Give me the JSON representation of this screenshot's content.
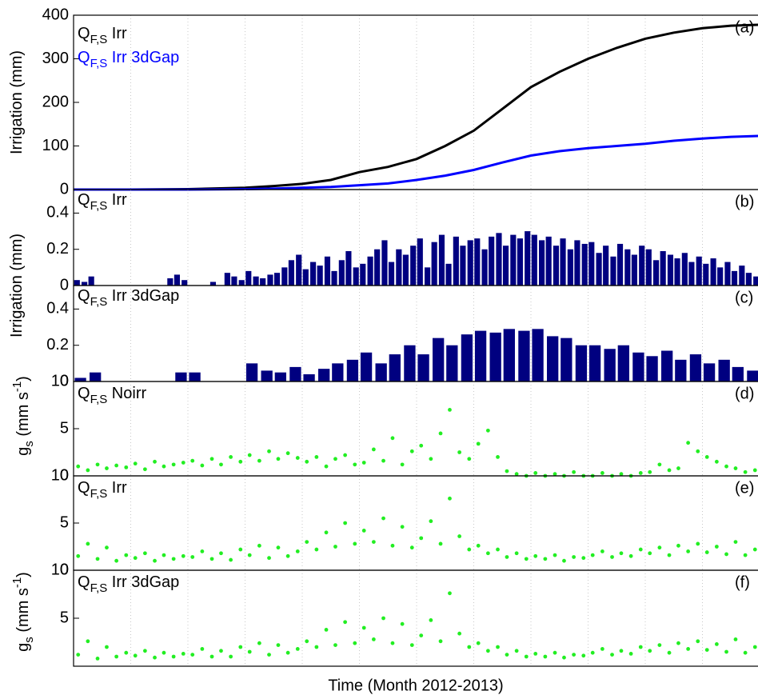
{
  "chart_data": [
    {
      "type": "line",
      "label": "(a)",
      "ylabel": [
        "Irrigation (mm)"
      ],
      "xlim": [
        0,
        12
      ],
      "xticks": [
        1,
        2,
        3,
        4,
        5,
        6,
        7,
        8,
        9,
        10,
        11
      ],
      "ylim": [
        0,
        400
      ],
      "yticks": [
        0,
        100,
        200,
        300,
        400
      ],
      "grid": true,
      "x": [
        0,
        1,
        2,
        3,
        3.5,
        4,
        4.5,
        5,
        5.5,
        6,
        6.5,
        7,
        7.5,
        8,
        8.5,
        9,
        9.5,
        10,
        10.5,
        11,
        11.5,
        12
      ],
      "series": [
        {
          "name": [
            "Q",
            "F,S",
            " Irr"
          ],
          "color": "#000000",
          "values": [
            0,
            0,
            1,
            4,
            8,
            13,
            22,
            40,
            52,
            70,
            100,
            135,
            185,
            235,
            270,
            300,
            325,
            346,
            360,
            370,
            376,
            378
          ]
        },
        {
          "name": [
            "Q",
            "F,S",
            " Irr 3dGap"
          ],
          "color": "#0000ff",
          "values": [
            0,
            0,
            0,
            1,
            2,
            4,
            6,
            10,
            14,
            22,
            32,
            45,
            62,
            78,
            88,
            95,
            100,
            105,
            112,
            117,
            121,
            123
          ]
        }
      ]
    },
    {
      "type": "bar",
      "label": "(b)",
      "ylabel": [
        "Irrigation (mm)"
      ],
      "name": [
        "Q",
        "F,S",
        " Irr"
      ],
      "color": "#000080",
      "xlim": [
        0,
        12
      ],
      "xticks": [
        1,
        2,
        3,
        4,
        5,
        6,
        7,
        8,
        9,
        10,
        11
      ],
      "ylim": [
        0,
        0.53
      ],
      "yticks": [
        0,
        0.2,
        0.4
      ],
      "grid": true,
      "x": [
        0.06,
        0.19,
        0.31,
        0.44,
        0.56,
        0.69,
        0.81,
        0.94,
        1.06,
        1.19,
        1.31,
        1.44,
        1.56,
        1.69,
        1.81,
        1.94,
        2.06,
        2.19,
        2.31,
        2.44,
        2.56,
        2.69,
        2.81,
        2.94,
        3.06,
        3.19,
        3.31,
        3.44,
        3.56,
        3.69,
        3.81,
        3.94,
        4.06,
        4.19,
        4.31,
        4.44,
        4.56,
        4.69,
        4.81,
        4.94,
        5.06,
        5.19,
        5.31,
        5.44,
        5.56,
        5.69,
        5.81,
        5.94,
        6.06,
        6.19,
        6.31,
        6.44,
        6.56,
        6.69,
        6.81,
        6.94,
        7.06,
        7.19,
        7.31,
        7.44,
        7.56,
        7.69,
        7.81,
        7.94,
        8.06,
        8.19,
        8.31,
        8.44,
        8.56,
        8.69,
        8.81,
        8.94,
        9.06,
        9.19,
        9.31,
        9.44,
        9.56,
        9.69,
        9.81,
        9.94,
        10.06,
        10.19,
        10.31,
        10.44,
        10.56,
        10.69,
        10.81,
        10.94,
        11.06,
        11.19,
        11.31,
        11.44,
        11.56,
        11.69,
        11.81,
        11.94
      ],
      "values": [
        0.03,
        0.02,
        0.05,
        0,
        0,
        0,
        0,
        0,
        0,
        0,
        0,
        0,
        0,
        0.04,
        0.06,
        0.03,
        0,
        0,
        0,
        0.02,
        0,
        0.07,
        0.05,
        0.03,
        0.08,
        0.05,
        0.04,
        0.06,
        0.07,
        0.1,
        0.14,
        0.17,
        0.09,
        0.13,
        0.11,
        0.16,
        0.08,
        0.14,
        0.19,
        0.1,
        0.12,
        0.16,
        0.2,
        0.25,
        0.13,
        0.2,
        0.17,
        0.22,
        0.26,
        0.1,
        0.24,
        0.28,
        0.12,
        0.27,
        0.22,
        0.25,
        0.26,
        0.2,
        0.27,
        0.29,
        0.22,
        0.28,
        0.26,
        0.3,
        0.28,
        0.25,
        0.27,
        0.22,
        0.26,
        0.2,
        0.25,
        0.23,
        0.24,
        0.18,
        0.22,
        0.16,
        0.23,
        0.2,
        0.17,
        0.22,
        0.2,
        0.14,
        0.19,
        0.17,
        0.15,
        0.18,
        0.13,
        0.16,
        0.12,
        0.15,
        0.1,
        0.13,
        0.08,
        0.11,
        0.07,
        0.05
      ]
    },
    {
      "type": "bar",
      "label": "(c)",
      "name": [
        "Q",
        "F,S",
        " Irr 3dGap"
      ],
      "color": "#000080",
      "xlim": [
        0,
        12
      ],
      "xticks": [
        1,
        2,
        3,
        4,
        5,
        6,
        7,
        8,
        9,
        10,
        11
      ],
      "ylim": [
        0,
        0.53
      ],
      "yticks": [
        0,
        0.2,
        0.4
      ],
      "grid": true,
      "x": [
        0.12,
        0.38,
        0.62,
        0.88,
        1.12,
        1.38,
        1.62,
        1.88,
        2.12,
        2.38,
        2.62,
        2.88,
        3.12,
        3.38,
        3.62,
        3.88,
        4.12,
        4.38,
        4.62,
        4.88,
        5.12,
        5.38,
        5.62,
        5.88,
        6.12,
        6.38,
        6.62,
        6.88,
        7.12,
        7.38,
        7.62,
        7.88,
        8.12,
        8.38,
        8.62,
        8.88,
        9.12,
        9.38,
        9.62,
        9.88,
        10.12,
        10.38,
        10.62,
        10.88,
        11.12,
        11.38,
        11.62,
        11.88
      ],
      "values": [
        0.02,
        0.05,
        0,
        0,
        0,
        0,
        0,
        0.05,
        0.05,
        0,
        0,
        0,
        0.1,
        0.06,
        0.05,
        0.08,
        0.04,
        0.07,
        0.1,
        0.12,
        0.16,
        0.1,
        0.15,
        0.2,
        0.15,
        0.24,
        0.2,
        0.26,
        0.28,
        0.27,
        0.29,
        0.28,
        0.29,
        0.25,
        0.24,
        0.2,
        0.2,
        0.18,
        0.2,
        0.16,
        0.14,
        0.17,
        0.12,
        0.15,
        0.1,
        0.12,
        0.08,
        0.06
      ]
    },
    {
      "type": "scatter",
      "label": "(d)",
      "ylabel": [
        "g",
        "s",
        " (mm s",
        "-1",
        ")"
      ],
      "name": [
        "Q",
        "F,S",
        " Noirr"
      ],
      "color": "#22ee22",
      "xlim": [
        0,
        12
      ],
      "xticks": [
        1,
        2,
        3,
        4,
        5,
        6,
        7,
        8,
        9,
        10,
        11
      ],
      "ylim": [
        0,
        10
      ],
      "yticks": [
        0,
        5,
        10
      ],
      "grid": true,
      "x": [
        0.08,
        0.25,
        0.42,
        0.58,
        0.75,
        0.92,
        1.08,
        1.25,
        1.42,
        1.58,
        1.75,
        1.92,
        2.08,
        2.25,
        2.42,
        2.58,
        2.75,
        2.92,
        3.08,
        3.25,
        3.42,
        3.58,
        3.75,
        3.92,
        4.08,
        4.25,
        4.42,
        4.58,
        4.75,
        4.92,
        5.08,
        5.25,
        5.42,
        5.58,
        5.75,
        5.92,
        6.08,
        6.25,
        6.42,
        6.58,
        6.75,
        6.92,
        7.08,
        7.25,
        7.42,
        7.58,
        7.75,
        7.92,
        8.08,
        8.25,
        8.42,
        8.58,
        8.75,
        8.92,
        9.08,
        9.25,
        9.42,
        9.58,
        9.75,
        9.92,
        10.08,
        10.25,
        10.42,
        10.58,
        10.75,
        10.92,
        11.08,
        11.25,
        11.42,
        11.58,
        11.75,
        11.92
      ],
      "values": [
        1,
        0.6,
        1.2,
        0.8,
        1.1,
        0.9,
        1.3,
        0.7,
        1.5,
        1,
        1.2,
        1.4,
        1.6,
        1.1,
        1.8,
        1.2,
        2,
        1.5,
        2.2,
        1.6,
        2.6,
        1.8,
        2.4,
        1.9,
        1.5,
        2,
        1,
        1.8,
        2.2,
        1.2,
        1.4,
        2.8,
        1.6,
        4,
        1.2,
        2.6,
        3.2,
        1.8,
        4.5,
        7,
        2.5,
        1.8,
        3.4,
        4.8,
        2,
        0.5,
        0.2,
        0,
        0.3,
        0,
        0.2,
        0,
        0.4,
        0,
        0,
        0.3,
        0,
        0.2,
        0,
        0.3,
        0.4,
        1.2,
        0.6,
        0.8,
        3.5,
        2.6,
        2,
        1.5,
        1,
        0.8,
        0.4,
        0.6
      ]
    },
    {
      "type": "scatter",
      "label": "(e)",
      "name": [
        "Q",
        "F,S",
        " Irr"
      ],
      "color": "#22ee22",
      "xlim": [
        0,
        12
      ],
      "xticks": [
        1,
        2,
        3,
        4,
        5,
        6,
        7,
        8,
        9,
        10,
        11
      ],
      "ylim": [
        0,
        10
      ],
      "yticks": [
        0,
        5,
        10
      ],
      "grid": true,
      "x": [
        0.08,
        0.25,
        0.42,
        0.58,
        0.75,
        0.92,
        1.08,
        1.25,
        1.42,
        1.58,
        1.75,
        1.92,
        2.08,
        2.25,
        2.42,
        2.58,
        2.75,
        2.92,
        3.08,
        3.25,
        3.42,
        3.58,
        3.75,
        3.92,
        4.08,
        4.25,
        4.42,
        4.58,
        4.75,
        4.92,
        5.08,
        5.25,
        5.42,
        5.58,
        5.75,
        5.92,
        6.08,
        6.25,
        6.42,
        6.58,
        6.75,
        6.92,
        7.08,
        7.25,
        7.42,
        7.58,
        7.75,
        7.92,
        8.08,
        8.25,
        8.42,
        8.58,
        8.75,
        8.92,
        9.08,
        9.25,
        9.42,
        9.58,
        9.75,
        9.92,
        10.08,
        10.25,
        10.42,
        10.58,
        10.75,
        10.92,
        11.08,
        11.25,
        11.42,
        11.58,
        11.75,
        11.92
      ],
      "values": [
        1.5,
        2.8,
        1.2,
        2.4,
        1,
        1.6,
        1.3,
        1.8,
        1,
        1.6,
        1.2,
        1.5,
        1.4,
        2,
        1.2,
        1.8,
        1.1,
        2.2,
        1.6,
        2.6,
        1.3,
        2.4,
        1.5,
        2,
        3,
        2.2,
        4,
        2.5,
        5,
        2.8,
        4.2,
        3,
        5.5,
        2.6,
        4.6,
        2.4,
        3.4,
        5.2,
        2.8,
        7.6,
        3.6,
        2.2,
        2.6,
        1.8,
        2.2,
        1.4,
        1.8,
        1.2,
        1.5,
        1.2,
        1.6,
        1,
        1.4,
        1.3,
        1.6,
        2,
        1.4,
        1.8,
        1.5,
        2.2,
        1.8,
        2.4,
        1.6,
        2.6,
        2,
        2.8,
        1.9,
        2.5,
        1.7,
        3,
        1.6,
        2.2
      ]
    },
    {
      "type": "scatter",
      "label": "(f)",
      "ylabel": [
        "g",
        "s",
        " (mm s",
        "-1",
        ")"
      ],
      "name": [
        "Q",
        "F,S",
        " Irr 3dGap"
      ],
      "color": "#22ee22",
      "xlim": [
        0,
        12
      ],
      "xticks": [
        1,
        2,
        3,
        4,
        5,
        6,
        7,
        8,
        9,
        10,
        11
      ],
      "ylim": [
        0,
        10
      ],
      "yticks": [
        5,
        10
      ],
      "grid": true,
      "xlabel": "Time (Month 2012-2013)",
      "x": [
        0.08,
        0.25,
        0.42,
        0.58,
        0.75,
        0.92,
        1.08,
        1.25,
        1.42,
        1.58,
        1.75,
        1.92,
        2.08,
        2.25,
        2.42,
        2.58,
        2.75,
        2.92,
        3.08,
        3.25,
        3.42,
        3.58,
        3.75,
        3.92,
        4.08,
        4.25,
        4.42,
        4.58,
        4.75,
        4.92,
        5.08,
        5.25,
        5.42,
        5.58,
        5.75,
        5.92,
        6.08,
        6.25,
        6.42,
        6.58,
        6.75,
        6.92,
        7.08,
        7.25,
        7.42,
        7.58,
        7.75,
        7.92,
        8.08,
        8.25,
        8.42,
        8.58,
        8.75,
        8.92,
        9.08,
        9.25,
        9.42,
        9.58,
        9.75,
        9.92,
        10.08,
        10.25,
        10.42,
        10.58,
        10.75,
        10.92,
        11.08,
        11.25,
        11.42,
        11.58,
        11.75,
        11.92
      ],
      "values": [
        1.2,
        2.6,
        0.8,
        2,
        1,
        1.4,
        1.1,
        1.6,
        0.9,
        1.4,
        1,
        1.3,
        1.2,
        1.8,
        1,
        1.6,
        1,
        2,
        1.5,
        2.4,
        1.2,
        2.2,
        1.4,
        1.8,
        2.6,
        2,
        3.8,
        2.2,
        4.6,
        2.4,
        4,
        2.8,
        5,
        2.4,
        4.4,
        2.2,
        3.2,
        4.8,
        2.6,
        7.6,
        3.4,
        2,
        2.4,
        1.6,
        2,
        1.2,
        1.6,
        1,
        1.3,
        1,
        1.4,
        0.9,
        1.2,
        1.1,
        1.4,
        1.8,
        1.2,
        1.6,
        1.3,
        2,
        1.6,
        2.2,
        1.4,
        2.4,
        1.8,
        2.6,
        1.7,
        2.3,
        1.5,
        2.8,
        1.4,
        2
      ]
    }
  ]
}
